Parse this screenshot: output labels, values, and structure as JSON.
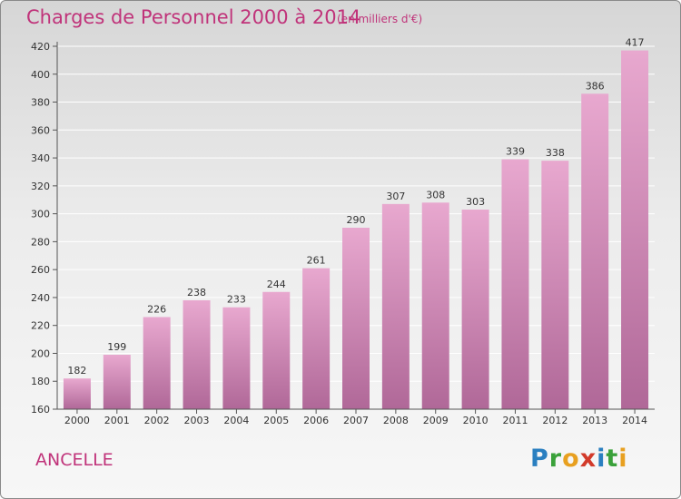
{
  "header": {
    "title": "Charges de Personnel 2000 à 2014",
    "subtitle": "(en milliers d'€)"
  },
  "footer": {
    "commune": "ANCELLE",
    "logo_letters": [
      "P",
      "r",
      "o",
      "x",
      "i",
      "t",
      "i"
    ],
    "logo_colors": [
      "#2a7fc0",
      "#3aa13a",
      "#e8a020",
      "#d23a2a",
      "#2a7fc0",
      "#3aa13a",
      "#e8a020"
    ]
  },
  "chart_data": {
    "type": "bar",
    "title": "Charges de Personnel 2000 à 2014",
    "subtitle": "(en milliers d'€)",
    "categories": [
      "2000",
      "2001",
      "2002",
      "2003",
      "2004",
      "2005",
      "2006",
      "2007",
      "2008",
      "2009",
      "2010",
      "2011",
      "2012",
      "2013",
      "2014"
    ],
    "values": [
      182,
      199,
      226,
      238,
      233,
      244,
      261,
      290,
      307,
      308,
      303,
      339,
      338,
      386,
      417
    ],
    "ylim": [
      160,
      420
    ],
    "yticks": [
      160,
      180,
      200,
      220,
      240,
      260,
      280,
      300,
      320,
      340,
      360,
      380,
      400,
      420
    ],
    "grid": true,
    "bar_color_top": "#e8a8cf",
    "bar_color_bottom": "#b06898",
    "grid_color": "#ffffff"
  }
}
